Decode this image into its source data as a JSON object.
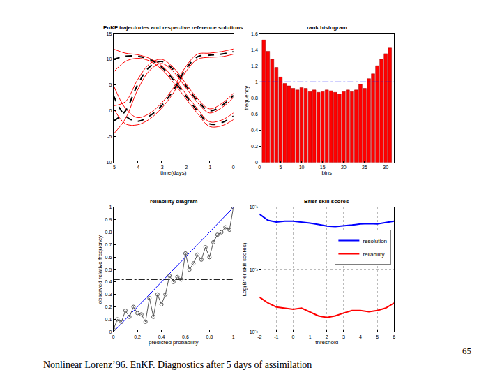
{
  "chart_data": [
    {
      "type": "line",
      "title": "EnKF trajectories and respective reference solutions",
      "x_label": "time(days)",
      "x": [
        -5,
        -4.5,
        -4,
        -3.5,
        -3,
        -2.5,
        -2,
        -1.5,
        -1,
        -0.5,
        0
      ],
      "xlim": [
        -5,
        0
      ],
      "xticks": [
        -5,
        -4,
        -3,
        -2,
        -1,
        0
      ],
      "ylim": [
        -10,
        15
      ],
      "yticks": [
        -10,
        -5,
        0,
        5,
        10,
        15
      ],
      "grid": false,
      "series": [
        {
          "color": "#ff0000",
          "line_style": "solid",
          "values": [
            12,
            11.2,
            10.9,
            10.2,
            8.8,
            6.4,
            3.4,
            0.4,
            -2.1,
            -1.8,
            -0.4
          ]
        },
        {
          "color": "#ff0000",
          "line_style": "solid",
          "values": [
            7.5,
            9.6,
            10.2,
            9.7,
            8.1,
            5.5,
            2.5,
            -0.5,
            -3,
            -2.9,
            -1.7
          ]
        },
        {
          "color": "#ff0000",
          "line_style": "solid",
          "values": [
            1,
            1.8,
            6,
            9.1,
            10,
            8.4,
            5.4,
            2.4,
            0.4,
            1.4,
            3.4
          ]
        },
        {
          "color": "#ff0000",
          "line_style": "solid",
          "values": [
            -4.5,
            -1.5,
            4,
            7.8,
            9.2,
            7.6,
            4.6,
            1.6,
            -0.4,
            0.6,
            2.6
          ]
        },
        {
          "color": "#ff0000",
          "line_style": "solid",
          "values": [
            5,
            0.5,
            -1.3,
            -0.5,
            1.5,
            4.5,
            8.5,
            11,
            11.2,
            11.5,
            12
          ]
        },
        {
          "color": "#ff0000",
          "line_style": "solid",
          "values": [
            0.5,
            -2.5,
            -2.7,
            -1.6,
            0.5,
            3.5,
            7.5,
            10,
            10.4,
            10.5,
            11
          ]
        },
        {
          "color": "#000000",
          "line_style": "dashed",
          "values": [
            10,
            10.6,
            10.6,
            10,
            8.5,
            6,
            3,
            0,
            -2.5,
            -2.3,
            -1
          ]
        },
        {
          "color": "#000000",
          "line_style": "dashed",
          "values": [
            -2,
            0,
            5,
            8.5,
            9.6,
            8,
            5,
            2,
            0,
            1,
            3
          ]
        },
        {
          "color": "#000000",
          "line_style": "dashed",
          "values": [
            3,
            -1,
            -2,
            -1,
            1,
            4,
            8,
            10.5,
            10.8,
            11,
            11.5
          ]
        }
      ]
    },
    {
      "type": "bar",
      "title": "rank histogram",
      "x_label": "bins",
      "y_label": "frequency",
      "x": [
        1,
        2,
        3,
        4,
        5,
        6,
        7,
        8,
        9,
        10,
        11,
        12,
        13,
        14,
        15,
        16,
        17,
        18,
        19,
        20,
        21,
        22,
        23,
        24,
        25,
        26,
        27,
        28,
        29,
        30,
        31
      ],
      "xlim": [
        0,
        32
      ],
      "xticks": [
        0,
        5,
        10,
        15,
        20,
        25,
        30
      ],
      "ylim": [
        0,
        1.6
      ],
      "yticks": [
        0,
        0.2,
        0.4,
        0.6,
        0.8,
        1,
        1.2,
        1.4,
        1.6
      ],
      "grid": false,
      "series": [
        {
          "type": "bar",
          "color": "#ff0000",
          "values": [
            1.52,
            1.38,
            1.28,
            1.18,
            1.06,
            0.98,
            0.95,
            0.92,
            0.9,
            0.93,
            0.92,
            0.88,
            0.9,
            0.87,
            0.88,
            0.9,
            0.89,
            0.87,
            0.85,
            0.88,
            0.9,
            0.88,
            0.9,
            0.97,
            0.92,
            1.04,
            1.1,
            1.2,
            1.28,
            1.35,
            1.42
          ]
        },
        {
          "type": "line",
          "color": "#0000ff",
          "line_style": "dashdot",
          "x": [
            0,
            32
          ],
          "values": [
            1,
            1
          ]
        }
      ]
    },
    {
      "type": "scatter",
      "title": "reliability diagram",
      "x_label": "predicted probability",
      "y_label": "observed relative frequency",
      "x": [
        0,
        0.033,
        0.067,
        0.1,
        0.133,
        0.167,
        0.2,
        0.233,
        0.267,
        0.3,
        0.333,
        0.367,
        0.4,
        0.433,
        0.467,
        0.5,
        0.533,
        0.567,
        0.6,
        0.633,
        0.667,
        0.7,
        0.733,
        0.767,
        0.8,
        0.833,
        0.867,
        0.9,
        0.933,
        0.967,
        1
      ],
      "xlim": [
        0,
        1
      ],
      "xticks": [
        0,
        0.2,
        0.4,
        0.6,
        0.8,
        1
      ],
      "ylim": [
        0,
        1
      ],
      "yticks": [
        0,
        0.1,
        0.2,
        0.3,
        0.4,
        0.5,
        0.6,
        0.7,
        0.8,
        0.9,
        1
      ],
      "grid": false,
      "series": [
        {
          "type": "line",
          "color": "#0000ff",
          "line_style": "solid",
          "x": [
            0,
            1
          ],
          "values": [
            0,
            1
          ]
        },
        {
          "type": "line",
          "color": "#000000",
          "line_style": "dashdot",
          "x": [
            0,
            1
          ],
          "values": [
            0.42,
            0.42
          ]
        },
        {
          "type": "line",
          "color": "#555555",
          "line_style": "solid",
          "marker": "circle",
          "values": [
            0.02,
            0.1,
            0.08,
            0.17,
            0.12,
            0.2,
            0.15,
            0.14,
            0.08,
            0.27,
            0.12,
            0.3,
            0.22,
            0.3,
            0.45,
            0.4,
            0.44,
            0.42,
            0.63,
            0.5,
            0.55,
            0.62,
            0.58,
            0.68,
            0.6,
            0.72,
            0.78,
            0.8,
            0.84,
            0.82,
            1
          ]
        }
      ]
    },
    {
      "type": "line",
      "title": "Brier skill scores",
      "x_label": "threshold",
      "y_label": "Log(Brier skill scores)",
      "x": [
        -2,
        -1.5,
        -1,
        -0.5,
        0,
        0.5,
        1,
        1.5,
        2,
        2.5,
        3,
        3.5,
        4,
        4.5,
        5,
        5.5,
        6
      ],
      "xlim": [
        -2,
        6
      ],
      "xticks": [
        -2,
        -1,
        0,
        1,
        2,
        3,
        4,
        5,
        6
      ],
      "ylim": [
        0.001,
        0.1
      ],
      "yticks": [
        {
          "value": 0.001,
          "label": "10⁻³"
        },
        {
          "value": 0.01,
          "label": "10⁻²"
        },
        {
          "value": 0.1,
          "label": "10⁻¹"
        }
      ],
      "log": "y",
      "grid": true,
      "legend": "upper right",
      "series": [
        {
          "name": "resolution",
          "color": "#0000ff",
          "line_style": "solid",
          "values": [
            0.078,
            0.062,
            0.058,
            0.06,
            0.06,
            0.058,
            0.056,
            0.053,
            0.05,
            0.049,
            0.05,
            0.052,
            0.054,
            0.055,
            0.054,
            0.057,
            0.06
          ]
        },
        {
          "name": "reliability",
          "color": "#ff0000",
          "line_style": "solid",
          "values": [
            0.0036,
            0.0029,
            0.0025,
            0.0024,
            0.0023,
            0.0024,
            0.0021,
            0.0018,
            0.0017,
            0.0018,
            0.002,
            0.0022,
            0.0022,
            0.0021,
            0.0022,
            0.0024,
            0.0029
          ]
        }
      ]
    }
  ],
  "footer": {
    "caption": "Nonlinear Lorenz’96. EnKF. Diagnostics after 5 days of assimilation",
    "page_number": 65
  }
}
